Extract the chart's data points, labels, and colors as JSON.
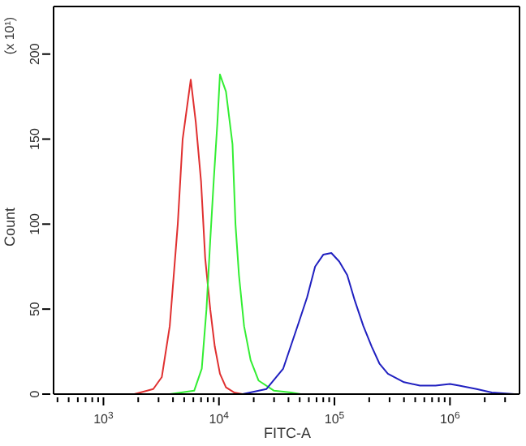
{
  "chart_data": {
    "type": "line",
    "xlabel": "FITC-A",
    "ylabel": "Count",
    "annotations": [
      "(x 10¹)"
    ],
    "log": "x",
    "marker": "none",
    "line_style": "solid",
    "xlim": [
      370,
      4000000
    ],
    "ylim": [
      0,
      228
    ],
    "xticks": [
      {
        "value": 1000,
        "label": "10$^{3}$"
      },
      {
        "value": 10000,
        "label": "10$^{4}$"
      },
      {
        "value": 100000,
        "label": "10$^{5}$"
      },
      {
        "value": 1000000,
        "label": "10$^{6}$"
      },
      {
        "value": 400,
        "label": null
      },
      {
        "value": 500,
        "label": null
      },
      {
        "value": 600,
        "label": null
      },
      {
        "value": 700,
        "label": null
      },
      {
        "value": 800,
        "label": null
      },
      {
        "value": 900,
        "label": null
      },
      {
        "value": 2000,
        "label": null
      },
      {
        "value": 3000,
        "label": null
      },
      {
        "value": 4000,
        "label": null
      },
      {
        "value": 5000,
        "label": null
      },
      {
        "value": 6000,
        "label": null
      },
      {
        "value": 7000,
        "label": null
      },
      {
        "value": 8000,
        "label": null
      },
      {
        "value": 9000,
        "label": null
      },
      {
        "value": 20000,
        "label": null
      },
      {
        "value": 30000,
        "label": null
      },
      {
        "value": 40000,
        "label": null
      },
      {
        "value": 50000,
        "label": null
      },
      {
        "value": 60000,
        "label": null
      },
      {
        "value": 70000,
        "label": null
      },
      {
        "value": 80000,
        "label": null
      },
      {
        "value": 90000,
        "label": null
      },
      {
        "value": 200000,
        "label": null
      },
      {
        "value": 300000,
        "label": null
      },
      {
        "value": 400000,
        "label": null
      },
      {
        "value": 500000,
        "label": null
      },
      {
        "value": 600000,
        "label": null
      },
      {
        "value": 700000,
        "label": null
      },
      {
        "value": 800000,
        "label": null
      },
      {
        "value": 900000,
        "label": null
      },
      {
        "value": 2000000,
        "label": null
      },
      {
        "value": 3000000,
        "label": null
      }
    ],
    "yticks": [
      0,
      50,
      100,
      150,
      200
    ],
    "series": [
      {
        "color": "#e03030",
        "x": [
          1850,
          2700,
          3200,
          3750,
          4400,
          4850,
          5700,
          6300,
          7000,
          7600,
          8400,
          9200,
          10200,
          11500,
          13500,
          16000
        ],
        "values": [
          0,
          3,
          10,
          40,
          100,
          150,
          185,
          160,
          125,
          80,
          50,
          28,
          12,
          4,
          1,
          0
        ]
      },
      {
        "color": "#33ee33",
        "x": [
          3750,
          6100,
          7100,
          7800,
          8400,
          9000,
          9700,
          10200,
          11500,
          13100,
          13900,
          14900,
          16500,
          18800,
          22000,
          30000,
          42000,
          51000
        ],
        "values": [
          0,
          2,
          15,
          50,
          90,
          125,
          160,
          188,
          178,
          147,
          100,
          70,
          40,
          20,
          8,
          2,
          1,
          0
        ]
      },
      {
        "color": "#2020c0",
        "x": [
          16000,
          25800,
          36000,
          49000,
          58000,
          68000,
          80000,
          94000,
          110000,
          129000,
          150000,
          178000,
          210000,
          245000,
          290000,
          400000,
          550000,
          750000,
          1000000,
          1200000,
          1700000,
          2300000,
          3600000
        ],
        "values": [
          0,
          3,
          15,
          42,
          57,
          75,
          82,
          83,
          78,
          70,
          55,
          40,
          28,
          18,
          12,
          7,
          5,
          5,
          6,
          5,
          3,
          1,
          0
        ]
      }
    ]
  }
}
